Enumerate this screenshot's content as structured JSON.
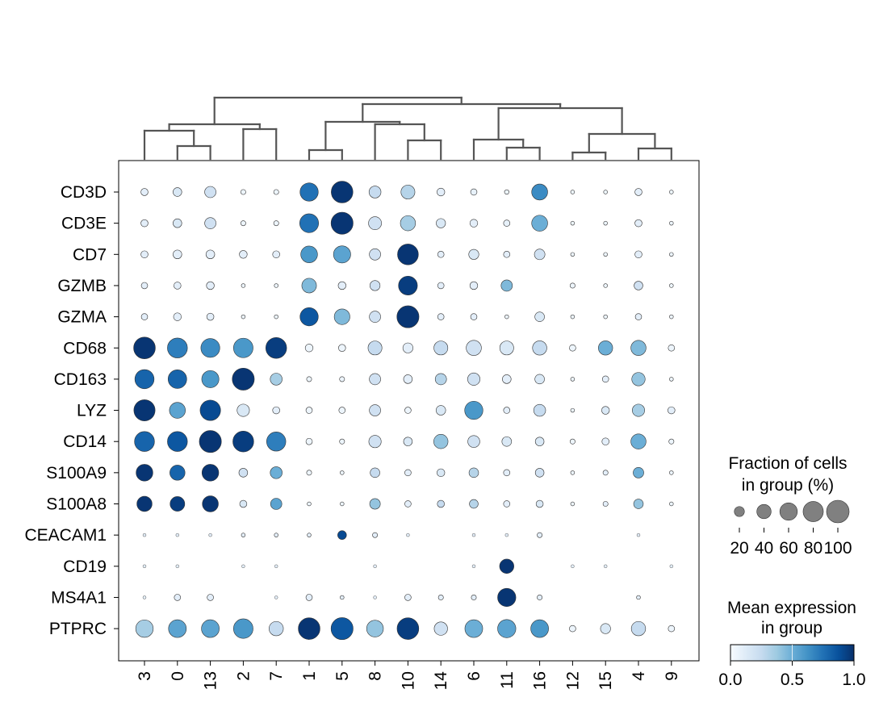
{
  "chart_data": {
    "type": "dotplot",
    "genes": [
      "CD3D",
      "CD3E",
      "CD7",
      "GZMB",
      "GZMA",
      "CD68",
      "CD163",
      "LYZ",
      "CD14",
      "S100A9",
      "S100A8",
      "CEACAM1",
      "CD19",
      "MS4A1",
      "PTPRC"
    ],
    "groups": [
      "3",
      "0",
      "13",
      "2",
      "7",
      "1",
      "5",
      "8",
      "10",
      "14",
      "6",
      "11",
      "16",
      "12",
      "15",
      "4",
      "9"
    ],
    "fraction": [
      [
        0.1,
        0.15,
        0.25,
        0.05,
        0.05,
        0.65,
        0.92,
        0.28,
        0.38,
        0.12,
        0.08,
        0.04,
        0.5,
        0.03,
        0.03,
        0.1,
        0.03
      ],
      [
        0.1,
        0.15,
        0.25,
        0.05,
        0.05,
        0.7,
        0.95,
        0.33,
        0.45,
        0.17,
        0.12,
        0.08,
        0.5,
        0.03,
        0.03,
        0.1,
        0.03
      ],
      [
        0.1,
        0.15,
        0.15,
        0.12,
        0.1,
        0.55,
        0.58,
        0.25,
        0.85,
        0.08,
        0.2,
        0.08,
        0.22,
        0.03,
        0.03,
        0.1,
        0.03
      ],
      [
        0.08,
        0.1,
        0.12,
        0.03,
        0.03,
        0.42,
        0.12,
        0.2,
        0.7,
        0.08,
        0.12,
        0.25,
        0.0,
        0.05,
        0.03,
        0.15,
        0.03
      ],
      [
        0.08,
        0.12,
        0.1,
        0.03,
        0.03,
        0.65,
        0.48,
        0.25,
        0.95,
        0.08,
        0.08,
        0.03,
        0.18,
        0.03,
        0.03,
        0.08,
        0.03
      ],
      [
        0.92,
        0.78,
        0.7,
        0.75,
        0.85,
        0.12,
        0.1,
        0.38,
        0.2,
        0.38,
        0.45,
        0.38,
        0.4,
        0.08,
        0.4,
        0.45,
        0.08
      ],
      [
        0.72,
        0.68,
        0.58,
        0.95,
        0.28,
        0.05,
        0.05,
        0.25,
        0.15,
        0.25,
        0.3,
        0.15,
        0.18,
        0.03,
        0.08,
        0.35,
        0.03
      ],
      [
        0.88,
        0.5,
        0.82,
        0.3,
        0.1,
        0.08,
        0.08,
        0.25,
        0.08,
        0.18,
        0.65,
        0.08,
        0.28,
        0.03,
        0.12,
        0.3,
        0.1
      ],
      [
        0.78,
        0.78,
        0.95,
        0.85,
        0.72,
        0.08,
        0.05,
        0.3,
        0.15,
        0.4,
        0.28,
        0.18,
        0.15,
        0.05,
        0.1,
        0.45,
        0.05
      ],
      [
        0.55,
        0.45,
        0.55,
        0.15,
        0.28,
        0.05,
        0.03,
        0.18,
        0.08,
        0.12,
        0.18,
        0.08,
        0.15,
        0.03,
        0.05,
        0.22,
        0.03
      ],
      [
        0.45,
        0.42,
        0.5,
        0.1,
        0.25,
        0.03,
        0.03,
        0.22,
        0.08,
        0.1,
        0.15,
        0.08,
        0.1,
        0.03,
        0.05,
        0.18,
        0.03
      ],
      [
        0.02,
        0.02,
        0.02,
        0.03,
        0.03,
        0.03,
        0.15,
        0.05,
        0.02,
        0.0,
        0.02,
        0.02,
        0.05,
        0.0,
        0.0,
        0.02,
        0.0
      ],
      [
        0.02,
        0.02,
        0.0,
        0.02,
        0.02,
        0.0,
        0.0,
        0.02,
        0.0,
        0.0,
        0.02,
        0.4,
        0.0,
        0.02,
        0.02,
        0.0,
        0.02
      ],
      [
        0.02,
        0.08,
        0.08,
        0.0,
        0.02,
        0.08,
        0.03,
        0.02,
        0.08,
        0.05,
        0.05,
        0.65,
        0.05,
        0.0,
        0.0,
        0.03,
        0.0
      ],
      [
        0.6,
        0.62,
        0.62,
        0.75,
        0.4,
        0.92,
        0.95,
        0.55,
        0.92,
        0.35,
        0.62,
        0.65,
        0.62,
        0.08,
        0.2,
        0.4,
        0.08
      ]
    ],
    "mean_expression": [
      [
        0.1,
        0.15,
        0.2,
        0.05,
        0.05,
        0.75,
        0.98,
        0.25,
        0.3,
        0.1,
        0.08,
        0.05,
        0.65,
        0.05,
        0.05,
        0.1,
        0.05
      ],
      [
        0.1,
        0.15,
        0.2,
        0.05,
        0.05,
        0.75,
        0.98,
        0.2,
        0.35,
        0.15,
        0.1,
        0.08,
        0.5,
        0.05,
        0.05,
        0.1,
        0.05
      ],
      [
        0.1,
        0.1,
        0.1,
        0.1,
        0.1,
        0.6,
        0.55,
        0.2,
        0.98,
        0.1,
        0.15,
        0.1,
        0.2,
        0.05,
        0.05,
        0.1,
        0.05
      ],
      [
        0.1,
        0.1,
        0.1,
        0.05,
        0.05,
        0.45,
        0.1,
        0.2,
        0.95,
        0.1,
        0.1,
        0.45,
        0.05,
        0.05,
        0.05,
        0.2,
        0.05
      ],
      [
        0.1,
        0.1,
        0.1,
        0.05,
        0.05,
        0.85,
        0.45,
        0.2,
        0.98,
        0.1,
        0.1,
        0.05,
        0.15,
        0.05,
        0.05,
        0.1,
        0.05
      ],
      [
        0.98,
        0.7,
        0.65,
        0.6,
        0.95,
        0.05,
        0.05,
        0.25,
        0.1,
        0.25,
        0.2,
        0.15,
        0.25,
        0.05,
        0.5,
        0.45,
        0.05
      ],
      [
        0.8,
        0.8,
        0.6,
        0.98,
        0.35,
        0.05,
        0.05,
        0.2,
        0.1,
        0.3,
        0.2,
        0.1,
        0.15,
        0.05,
        0.1,
        0.4,
        0.05
      ],
      [
        0.98,
        0.55,
        0.9,
        0.15,
        0.1,
        0.05,
        0.05,
        0.2,
        0.05,
        0.15,
        0.6,
        0.1,
        0.25,
        0.05,
        0.15,
        0.35,
        0.1
      ],
      [
        0.8,
        0.85,
        0.98,
        0.95,
        0.7,
        0.05,
        0.05,
        0.2,
        0.15,
        0.4,
        0.2,
        0.15,
        0.15,
        0.05,
        0.1,
        0.5,
        0.05
      ],
      [
        0.98,
        0.8,
        0.98,
        0.2,
        0.5,
        0.05,
        0.05,
        0.25,
        0.1,
        0.15,
        0.3,
        0.1,
        0.2,
        0.05,
        0.1,
        0.5,
        0.05
      ],
      [
        0.98,
        0.95,
        0.98,
        0.15,
        0.55,
        0.05,
        0.05,
        0.4,
        0.1,
        0.25,
        0.3,
        0.1,
        0.15,
        0.05,
        0.1,
        0.4,
        0.05
      ],
      [
        0.1,
        0.1,
        0.1,
        0.1,
        0.1,
        0.1,
        0.9,
        0.1,
        0.1,
        0.05,
        0.1,
        0.1,
        0.1,
        0.05,
        0.05,
        0.1,
        0.05
      ],
      [
        0.1,
        0.1,
        0.05,
        0.1,
        0.1,
        0.05,
        0.05,
        0.1,
        0.05,
        0.05,
        0.1,
        0.98,
        0.05,
        0.1,
        0.1,
        0.05,
        0.1
      ],
      [
        0.1,
        0.1,
        0.1,
        0.05,
        0.1,
        0.1,
        0.1,
        0.1,
        0.1,
        0.1,
        0.1,
        0.98,
        0.1,
        0.05,
        0.05,
        0.1,
        0.05
      ],
      [
        0.35,
        0.55,
        0.55,
        0.6,
        0.25,
        0.98,
        0.85,
        0.4,
        0.95,
        0.2,
        0.5,
        0.55,
        0.6,
        0.05,
        0.15,
        0.25,
        0.05
      ]
    ],
    "size_legend": {
      "title_line1": "Fraction of cells",
      "title_line2": "in group (%)",
      "values": [
        20,
        40,
        60,
        80,
        100
      ]
    },
    "color_legend": {
      "title_line1": "Mean expression",
      "title_line2": "in group",
      "ticks": [
        "0.0",
        "0.5",
        "1.0"
      ],
      "colormap": [
        "#f7fbff",
        "#deebf7",
        "#c6dbef",
        "#9ecae1",
        "#6baed6",
        "#4292c6",
        "#2171b5",
        "#08519c",
        "#08306b"
      ]
    },
    "dendrogram_color": "#555555"
  }
}
